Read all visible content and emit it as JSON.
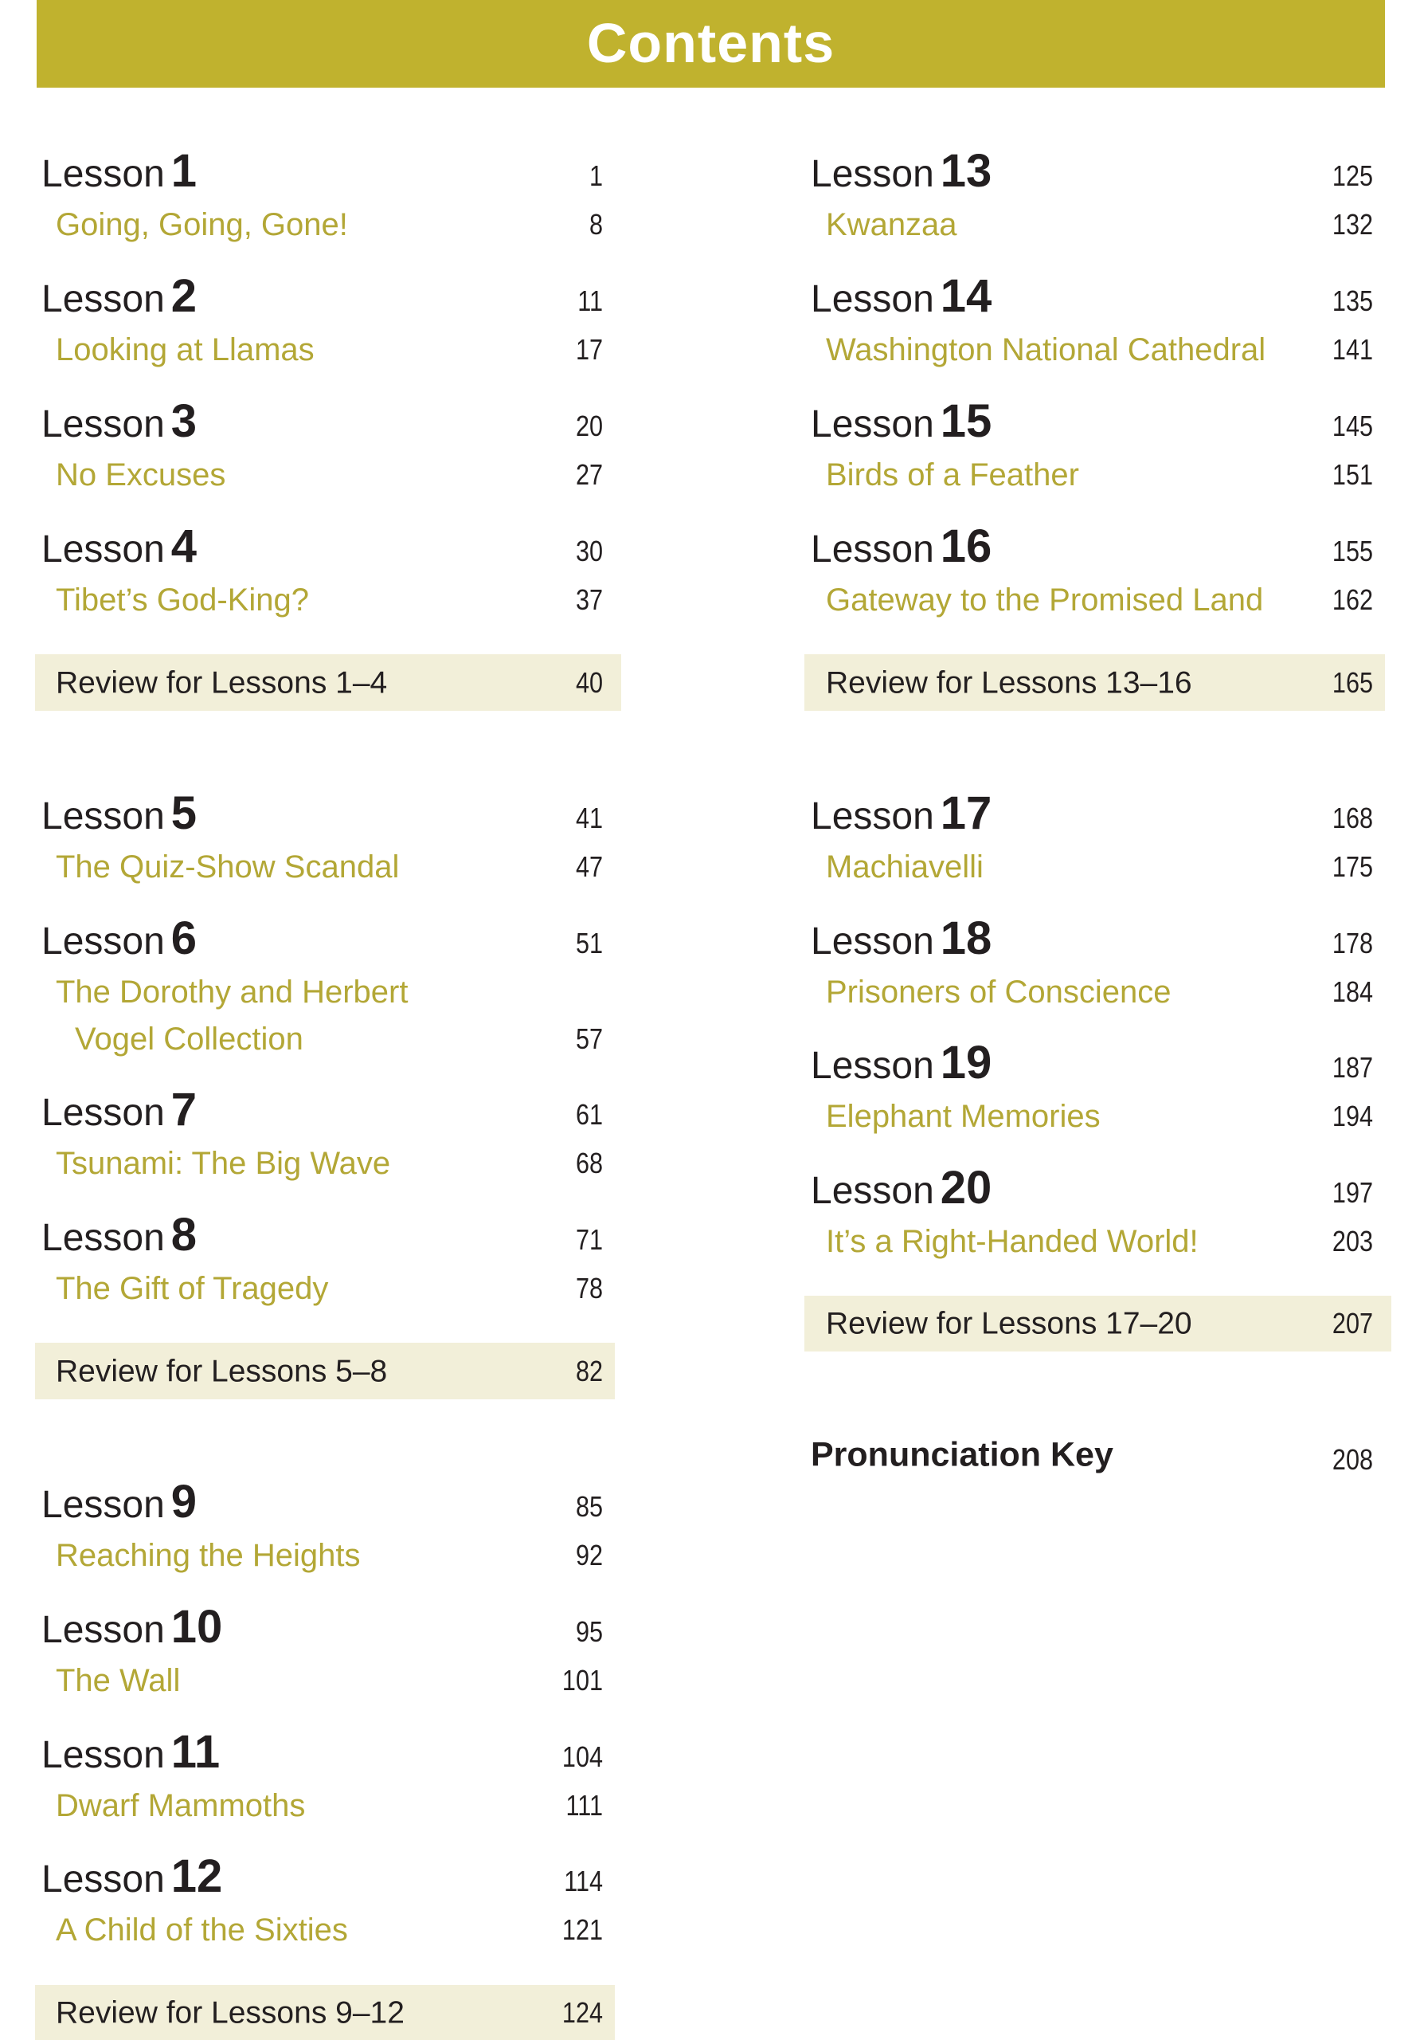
{
  "title": "Contents",
  "colors": {
    "band": "#c0b22e",
    "subtitle": "#b3a736",
    "review_bg": "#f2efd9"
  },
  "lesson_word": "Lesson",
  "lessons": [
    {
      "number": "1",
      "page": "1",
      "subtitle": [
        "Going, Going, Gone!"
      ],
      "subtitle_page": "8"
    },
    {
      "number": "2",
      "page": "11",
      "subtitle": [
        "Looking at Llamas"
      ],
      "subtitle_page": "17"
    },
    {
      "number": "3",
      "page": "20",
      "subtitle": [
        "No Excuses"
      ],
      "subtitle_page": "27"
    },
    {
      "number": "4",
      "page": "30",
      "subtitle": [
        "Tibet’s God-King?"
      ],
      "subtitle_page": "37"
    },
    {
      "number": "5",
      "page": "41",
      "subtitle": [
        "The Quiz-Show Scandal"
      ],
      "subtitle_page": "47"
    },
    {
      "number": "6",
      "page": "51",
      "subtitle": [
        "The Dorothy and Herbert",
        "Vogel Collection"
      ],
      "subtitle_page": "57"
    },
    {
      "number": "7",
      "page": "61",
      "subtitle": [
        "Tsunami: The Big Wave"
      ],
      "subtitle_page": "68"
    },
    {
      "number": "8",
      "page": "71",
      "subtitle": [
        "The Gift of Tragedy"
      ],
      "subtitle_page": "78"
    },
    {
      "number": "9",
      "page": "85",
      "subtitle": [
        "Reaching the Heights"
      ],
      "subtitle_page": "92"
    },
    {
      "number": "10",
      "page": "95",
      "subtitle": [
        "The Wall"
      ],
      "subtitle_page": "101"
    },
    {
      "number": "11",
      "page": "104",
      "subtitle": [
        "Dwarf Mammoths"
      ],
      "subtitle_page": "111"
    },
    {
      "number": "12",
      "page": "114",
      "subtitle": [
        "A Child of the Sixties"
      ],
      "subtitle_page": "121"
    },
    {
      "number": "13",
      "page": "125",
      "subtitle": [
        "Kwanzaa"
      ],
      "subtitle_page": "132"
    },
    {
      "number": "14",
      "page": "135",
      "subtitle": [
        "Washington National Cathedral"
      ],
      "subtitle_page": "141"
    },
    {
      "number": "15",
      "page": "145",
      "subtitle": [
        "Birds of a Feather"
      ],
      "subtitle_page": "151"
    },
    {
      "number": "16",
      "page": "155",
      "subtitle": [
        "Gateway to the Promised Land"
      ],
      "subtitle_page": "162"
    },
    {
      "number": "17",
      "page": "168",
      "subtitle": [
        "Machiavelli"
      ],
      "subtitle_page": "175"
    },
    {
      "number": "18",
      "page": "178",
      "subtitle": [
        "Prisoners of Conscience"
      ],
      "subtitle_page": "184"
    },
    {
      "number": "19",
      "page": "187",
      "subtitle": [
        "Elephant Memories"
      ],
      "subtitle_page": "194"
    },
    {
      "number": "20",
      "page": "197",
      "subtitle": [
        "It’s a Right-Handed World!"
      ],
      "subtitle_page": "203"
    }
  ],
  "reviews": [
    {
      "label": "Review for Lessons 1–4",
      "page": "40"
    },
    {
      "label": "Review for Lessons 5–8",
      "page": "82"
    },
    {
      "label": "Review for Lessons 9–12",
      "page": "124"
    },
    {
      "label": "Review for Lessons 13–16",
      "page": "165"
    },
    {
      "label": "Review for Lessons 17–20",
      "page": "207"
    }
  ],
  "pronunciation": {
    "label": "Pronunciation Key",
    "page": "208"
  }
}
